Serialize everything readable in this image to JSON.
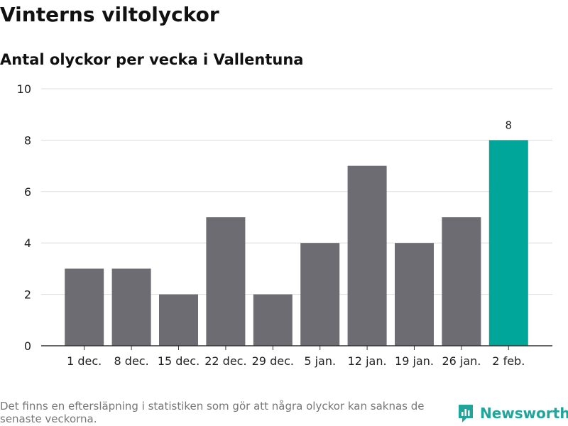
{
  "title": "Vinterns viltolyckor",
  "subtitle": "Antal olyckor per vecka i Vallentuna",
  "footnote": "Det finns en eftersläpning i statistiken som gör att några olyckor kan saknas de senaste veckorna.",
  "brand": {
    "name": "Newsworthy",
    "icon": "newsworthy-logo-icon",
    "color": "#21a59a"
  },
  "colors": {
    "bar": "#6d6c72",
    "highlight": "#00a69a",
    "grid": "#dddddd",
    "axis": "#333333"
  },
  "chart_data": {
    "type": "bar",
    "categories": [
      "1 dec.",
      "8 dec.",
      "15 dec.",
      "22 dec.",
      "29 dec.",
      "5 jan.",
      "12 jan.",
      "19 jan.",
      "26 jan.",
      "2 feb."
    ],
    "values": [
      3,
      3,
      2,
      5,
      2,
      4,
      7,
      4,
      5,
      8
    ],
    "highlight_index": 9,
    "data_labels": [
      {
        "index": 9,
        "text": "8"
      }
    ],
    "ylim": [
      0,
      10
    ],
    "yticks": [
      0,
      2,
      4,
      6,
      8,
      10
    ],
    "xlabel": "",
    "ylabel": "",
    "grid": true
  }
}
